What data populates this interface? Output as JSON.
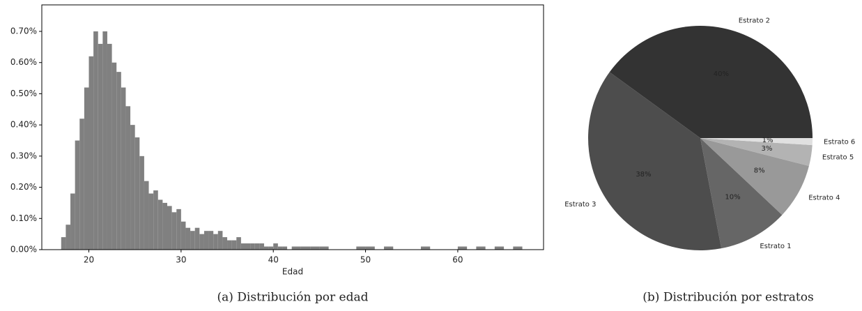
{
  "chart_data": [
    {
      "type": "histogram",
      "caption": "(a) Distribución por edad",
      "xlabel": "Edad",
      "color": "#808080",
      "bins": [
        17,
        17.5,
        18,
        18.5,
        19,
        19.5,
        20,
        20.5,
        21,
        21.5,
        22,
        22.5,
        23,
        23.5,
        24,
        24.5,
        25,
        25.5,
        26,
        26.5,
        27,
        27.5,
        28,
        28.5,
        29,
        29.5,
        30,
        30.5,
        31,
        31.5,
        32,
        32.5,
        33,
        33.5,
        34,
        34.5,
        35,
        35.5,
        36,
        36.5,
        37,
        37.5,
        38,
        38.5,
        39,
        39.5,
        40,
        40.5,
        41,
        41.5,
        42,
        43,
        44,
        45,
        46,
        47,
        48,
        49,
        50,
        51,
        52,
        53,
        54,
        55,
        56,
        57,
        58,
        59,
        60,
        61,
        62,
        63,
        64,
        65,
        66,
        67
      ],
      "counts": [
        0.0004,
        0.0008,
        0.0018,
        0.0035,
        0.0042,
        0.0052,
        0.0062,
        0.007,
        0.0066,
        0.007,
        0.0066,
        0.006,
        0.0057,
        0.0052,
        0.0046,
        0.004,
        0.0036,
        0.003,
        0.0022,
        0.0018,
        0.0019,
        0.0016,
        0.0015,
        0.0014,
        0.0012,
        0.0013,
        0.0009,
        0.0007,
        0.0006,
        0.0007,
        0.0005,
        0.0006,
        0.0006,
        0.0005,
        0.0006,
        0.0004,
        0.0003,
        0.0003,
        0.0004,
        0.0002,
        0.0002,
        0.0002,
        0.0002,
        0.0002,
        0.0001,
        0.0001,
        0.0002,
        0.0001,
        0.0001,
        0,
        0.0001,
        0.0001,
        0.0001,
        0.0001,
        0,
        0,
        0,
        0.0001,
        0.0001,
        0,
        0.0001,
        0,
        0,
        0,
        0.0001,
        0,
        0,
        0,
        0.0001,
        0,
        0.0001,
        0,
        0.0001,
        0,
        0.0001
      ],
      "xlim": [
        14.9,
        69.3
      ],
      "ylim": [
        0,
        0.00785
      ],
      "xticks": [
        20,
        30,
        40,
        50,
        60
      ],
      "yticks": [
        {
          "value": 0,
          "label": "0.00%"
        },
        {
          "value": 0.001,
          "label": "0.10%"
        },
        {
          "value": 0.002,
          "label": "0.20%"
        },
        {
          "value": 0.003,
          "label": "0.30%"
        },
        {
          "value": 0.004,
          "label": "0.40%"
        },
        {
          "value": 0.005,
          "label": "0.50%"
        },
        {
          "value": 0.006,
          "label": "0.60%"
        },
        {
          "value": 0.007,
          "label": "0.70%"
        }
      ]
    },
    {
      "type": "pie",
      "caption": "(b) Distribución por estratos",
      "categories": [
        "Estrato 2",
        "Estrato 3",
        "Estrato 1",
        "Estrato 4",
        "Estrato 5",
        "Estrato 6"
      ],
      "values": [
        40,
        38,
        10,
        8,
        3,
        1
      ],
      "value_labels": [
        "40%",
        "38%",
        "10%",
        "8%",
        "3%",
        "1%"
      ],
      "colors": [
        "#333333",
        "#4d4d4d",
        "#666666",
        "#999999",
        "#b3b3b3",
        "#e0e0e0"
      ]
    }
  ]
}
